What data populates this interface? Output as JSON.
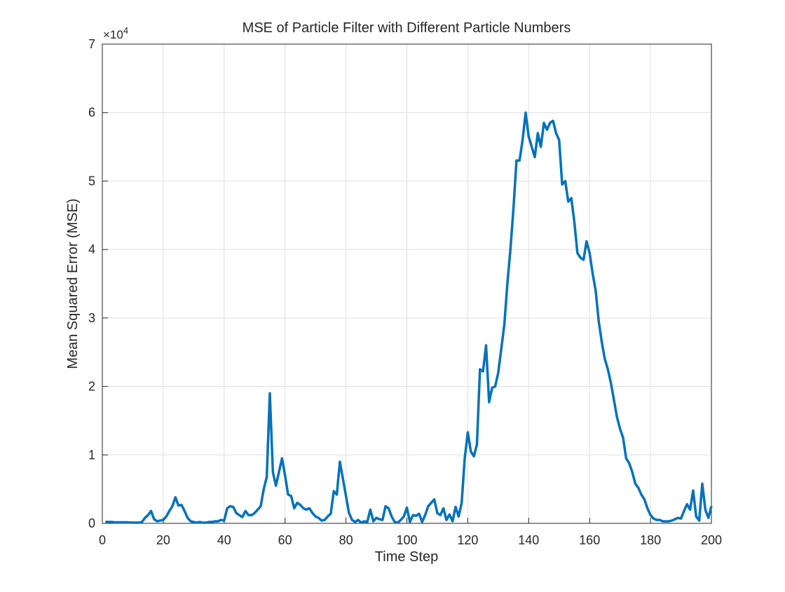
{
  "chart_data": {
    "type": "line",
    "title": "MSE of Particle Filter with Different Particle Numbers",
    "x_label": "Time Step",
    "y_label": "Mean Squared Error (MSE)",
    "y_multiplier": "×10",
    "y_exponent": "4",
    "xlim": [
      0,
      200
    ],
    "xticks": [
      0,
      20,
      40,
      60,
      80,
      100,
      120,
      140,
      160,
      180,
      200
    ],
    "ylim": [
      0,
      7
    ],
    "yticks": [
      0,
      1,
      2,
      3,
      4,
      5,
      6,
      7
    ],
    "grid": true,
    "x": [
      1,
      2,
      3,
      4,
      5,
      6,
      7,
      8,
      9,
      10,
      11,
      12,
      13,
      14,
      15,
      16,
      17,
      18,
      19,
      20,
      21,
      22,
      23,
      24,
      25,
      26,
      27,
      28,
      29,
      30,
      31,
      32,
      33,
      34,
      35,
      36,
      37,
      38,
      39,
      40,
      41,
      42,
      43,
      44,
      45,
      46,
      47,
      48,
      49,
      50,
      51,
      52,
      53,
      54,
      55,
      56,
      57,
      58,
      59,
      60,
      61,
      62,
      63,
      64,
      65,
      66,
      67,
      68,
      69,
      70,
      71,
      72,
      73,
      74,
      75,
      76,
      77,
      78,
      79,
      80,
      81,
      82,
      83,
      84,
      85,
      86,
      87,
      88,
      89,
      90,
      91,
      92,
      93,
      94,
      95,
      96,
      97,
      98,
      99,
      100,
      101,
      102,
      103,
      104,
      105,
      106,
      107,
      108,
      109,
      110,
      111,
      112,
      113,
      114,
      115,
      116,
      117,
      118,
      119,
      120,
      121,
      122,
      123,
      124,
      125,
      126,
      127,
      128,
      129,
      130,
      131,
      132,
      133,
      134,
      135,
      136,
      137,
      138,
      139,
      140,
      141,
      142,
      143,
      144,
      145,
      146,
      147,
      148,
      149,
      150,
      151,
      152,
      153,
      154,
      155,
      156,
      157,
      158,
      159,
      160,
      161,
      162,
      163,
      164,
      165,
      166,
      167,
      168,
      169,
      170,
      171,
      172,
      173,
      174,
      175,
      176,
      177,
      178,
      179,
      180,
      181,
      182,
      183,
      184,
      185,
      186,
      187,
      188,
      189,
      190,
      191,
      192,
      193,
      194,
      195,
      196,
      197,
      198,
      199,
      200
    ],
    "series": [
      {
        "name": "MSE",
        "color": "#0072BD",
        "values": [
          0.02,
          0.02,
          0.02,
          0.015,
          0.015,
          0.015,
          0.015,
          0.015,
          0.012,
          0.012,
          0.01,
          0.01,
          0.02,
          0.08,
          0.12,
          0.18,
          0.06,
          0.03,
          0.04,
          0.05,
          0.1,
          0.18,
          0.25,
          0.38,
          0.26,
          0.27,
          0.18,
          0.08,
          0.03,
          0.02,
          0.01,
          0.02,
          0.01,
          0.01,
          0.02,
          0.02,
          0.03,
          0.03,
          0.05,
          0.04,
          0.22,
          0.25,
          0.24,
          0.15,
          0.12,
          0.09,
          0.18,
          0.12,
          0.12,
          0.15,
          0.2,
          0.25,
          0.5,
          0.68,
          1.9,
          0.75,
          0.55,
          0.75,
          0.95,
          0.7,
          0.42,
          0.4,
          0.22,
          0.3,
          0.27,
          0.22,
          0.2,
          0.22,
          0.15,
          0.1,
          0.08,
          0.04,
          0.05,
          0.1,
          0.14,
          0.47,
          0.42,
          0.9,
          0.65,
          0.4,
          0.15,
          0.05,
          0.02,
          0.05,
          0.01,
          0.03,
          0.02,
          0.2,
          0.03,
          0.08,
          0.06,
          0.05,
          0.25,
          0.22,
          0.1,
          0.02,
          0.01,
          0.05,
          0.1,
          0.23,
          0.02,
          0.12,
          0.11,
          0.14,
          0.02,
          0.12,
          0.25,
          0.3,
          0.35,
          0.15,
          0.12,
          0.22,
          0.05,
          0.13,
          0.03,
          0.24,
          0.1,
          0.3,
          0.95,
          1.33,
          1.05,
          0.98,
          1.15,
          2.25,
          2.22,
          2.6,
          1.77,
          1.98,
          2.0,
          2.2,
          2.55,
          2.9,
          3.5,
          4.0,
          4.6,
          5.3,
          5.3,
          5.6,
          6.0,
          5.65,
          5.5,
          5.35,
          5.7,
          5.5,
          5.85,
          5.75,
          5.85,
          5.88,
          5.7,
          5.6,
          4.95,
          5.0,
          4.7,
          4.75,
          4.4,
          3.95,
          3.88,
          3.85,
          4.12,
          3.95,
          3.65,
          3.4,
          2.95,
          2.65,
          2.4,
          2.25,
          2.05,
          1.8,
          1.55,
          1.38,
          1.25,
          0.95,
          0.88,
          0.75,
          0.58,
          0.52,
          0.42,
          0.35,
          0.22,
          0.12,
          0.07,
          0.05,
          0.05,
          0.03,
          0.03,
          0.03,
          0.04,
          0.06,
          0.08,
          0.07,
          0.18,
          0.28,
          0.2,
          0.48,
          0.1,
          0.04,
          0.58,
          0.2,
          0.08,
          0.25
        ]
      }
    ]
  }
}
